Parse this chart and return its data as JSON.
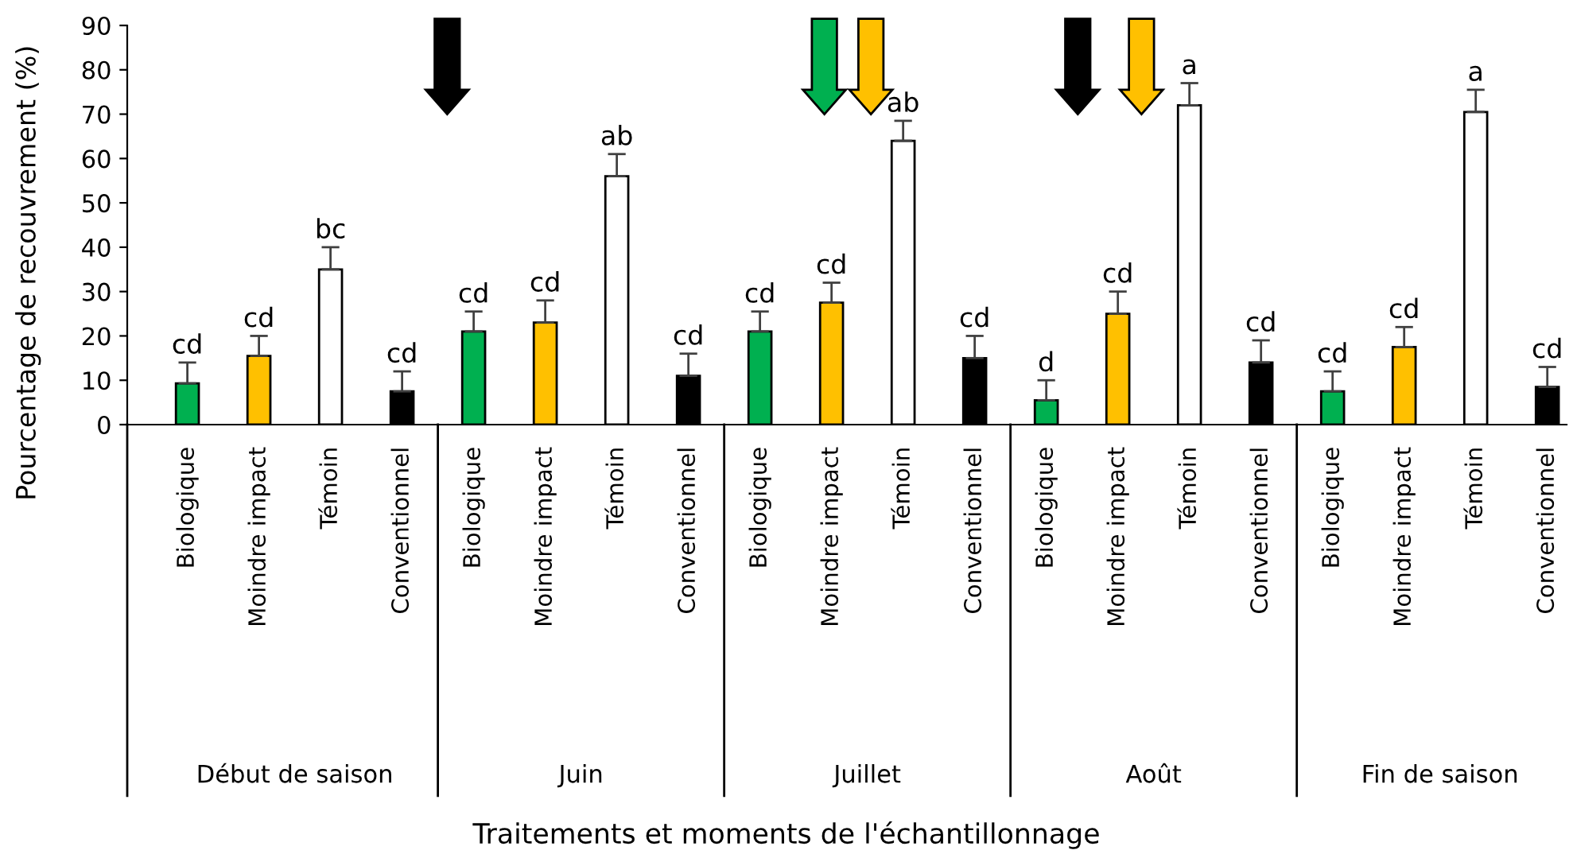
{
  "chart_data": {
    "type": "bar",
    "ylabel": "Pourcentage de recouvrement (%)",
    "categories": [
      "Biologique",
      "Moindre impact",
      "Témoin",
      "Conventionnel",
      "Biologique",
      "Moindre impact",
      "Témoin",
      "Conventionnel",
      "Biologique",
      "Moindre impact",
      "Témoin",
      "Conventionnel",
      "Biologique",
      "Moindre impact",
      "Témoin",
      "Conventionnel",
      "Biologique",
      "Moindre impact",
      "Témoin",
      "Conventionnel"
    ],
    "values": [
      9.3,
      15.5,
      35,
      7.5,
      21,
      23,
      56,
      11,
      21,
      27.5,
      64,
      15,
      5.5,
      25,
      72,
      14,
      7.5,
      17.5,
      70.5,
      8.5
    ],
    "colors": [
      "#00b050",
      "#ffc000",
      "#ffffff",
      "#000000",
      "#00b050",
      "#ffc000",
      "#ffffff",
      "#000000",
      "#00b050",
      "#ffc000",
      "#ffffff",
      "#000000",
      "#00b050",
      "#ffc000",
      "#ffffff",
      "#000000",
      "#00b050",
      "#ffc000",
      "#ffffff",
      "#000000"
    ],
    "errors": [
      [
        9.3,
        14
      ],
      [
        15.5,
        20
      ],
      [
        35,
        40
      ],
      [
        7.5,
        12
      ],
      [
        21,
        25.5
      ],
      [
        23,
        28
      ],
      [
        56,
        61
      ],
      [
        11,
        16
      ],
      [
        21,
        25.5
      ],
      [
        27.5,
        32
      ],
      [
        64,
        68.5
      ],
      [
        15,
        20
      ],
      [
        5.5,
        10
      ],
      [
        25,
        30
      ],
      [
        72,
        77
      ],
      [
        14,
        19
      ],
      [
        7.5,
        12
      ],
      [
        17.5,
        22
      ],
      [
        70.5,
        75.5
      ],
      [
        8.5,
        13
      ]
    ],
    "value_labels": [
      "cd",
      "cd",
      "bc",
      "cd",
      "cd",
      "cd",
      "ab",
      "cd",
      "cd",
      "cd",
      "ab",
      "cd",
      "d",
      "cd",
      "a",
      "cd",
      "cd",
      "cd",
      "a",
      "cd"
    ],
    "annotations": [
      "Début de saison",
      "Juin",
      "Juillet",
      "Août",
      "Fin de saison",
      "Traitements et moments de l'échantillonnage"
    ],
    "ylim": [
      0,
      90
    ],
    "yticks": [
      0,
      10,
      20,
      30,
      40,
      50,
      60,
      70,
      80,
      90
    ],
    "grid": false,
    "legend": false
  }
}
